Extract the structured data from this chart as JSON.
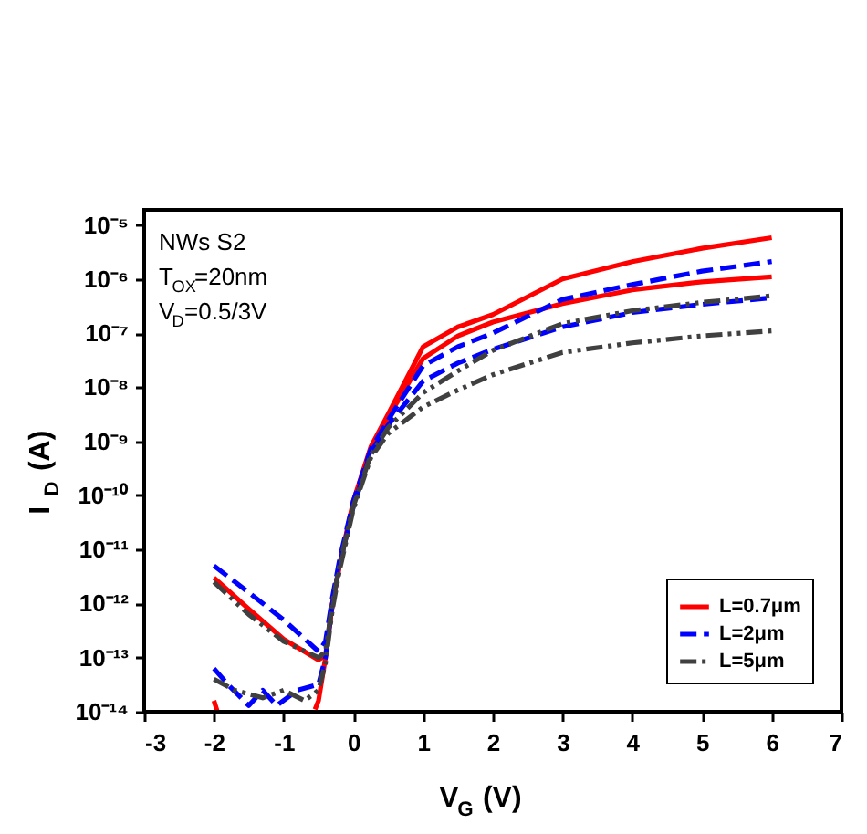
{
  "chart_data": {
    "type": "line",
    "xlabel": "V$_{G}$ (V)",
    "ylabel": "I$_{D}$ (A)",
    "annotations": [
      "NWs S2",
      "T$_{OX}$=20nm",
      "V$_{D}$=0.5/3V"
    ],
    "xlim": [
      -3,
      7
    ],
    "xticks": [
      -3,
      -2,
      -1,
      0,
      1,
      2,
      3,
      4,
      5,
      6,
      7
    ],
    "ylim": [
      1e-14,
      1.9e-05
    ],
    "log": "y",
    "yticks": [
      {
        "value": 1e-14,
        "label": "10⁻¹⁴"
      },
      {
        "value": 1e-13,
        "label": "10⁻¹³"
      },
      {
        "value": 1e-12,
        "label": "10⁻¹²"
      },
      {
        "value": 1e-11,
        "label": "10⁻¹¹"
      },
      {
        "value": 1e-10,
        "label": "10⁻¹⁰"
      },
      {
        "value": 1e-09,
        "label": "10⁻⁹"
      },
      {
        "value": 1e-08,
        "label": "10⁻⁸"
      },
      {
        "value": 1e-07,
        "label": "10⁻⁷"
      },
      {
        "value": 1e-06,
        "label": "10⁻⁶"
      },
      {
        "value": 1e-05,
        "label": "10⁻⁵"
      }
    ],
    "grid": false,
    "legend": "bottom right",
    "marker": "none",
    "series": [
      {
        "name": "L=0.7μm",
        "color": "#ff0000",
        "line_style": "solid",
        "x": [
          -2,
          -1.5,
          -1,
          -0.5,
          -0.4,
          -0.3,
          -0.2,
          0,
          0.25,
          0.5,
          1,
          1.5,
          2,
          3,
          4,
          5,
          6
        ],
        "values": [
          3e-12,
          7.9e-13,
          2.2e-13,
          9.1e-14,
          1.1e-13,
          1e-12,
          5e-12,
          7.9e-11,
          7.9e-10,
          3.2e-09,
          5.6e-08,
          1.3e-07,
          2.2e-07,
          1e-06,
          2.1e-06,
          3.7e-06,
          5.8e-06
        ]
      },
      {
        "color": "#ff0000",
        "line_style": "solid",
        "x": [
          -2,
          -1.95,
          -1.5,
          -0.55,
          -0.5,
          -0.4,
          -0.3,
          -0.2,
          0,
          0.25,
          0.5,
          1,
          1.5,
          2,
          3,
          4,
          5,
          6
        ],
        "values": [
          1.6e-14,
          1e-14,
          null,
          1.1e-14,
          1.6e-14,
          1e-13,
          1e-12,
          5e-12,
          7.1e-11,
          7.1e-10,
          2.8e-09,
          3.4e-08,
          8.9e-08,
          1.6e-07,
          3.5e-07,
          6.3e-07,
          8.9e-07,
          1.1e-06
        ]
      },
      {
        "name": "L=2μm",
        "color": "#0000ff",
        "line_style": "dashed",
        "x": [
          -2,
          -1.5,
          -1,
          -0.5,
          -0.4,
          -0.3,
          -0.2,
          0,
          0.25,
          0.5,
          1,
          1.5,
          2,
          3,
          4,
          5,
          6
        ],
        "values": [
          5e-12,
          1.6e-12,
          5e-13,
          1.3e-13,
          2e-13,
          1.3e-12,
          6.3e-12,
          7.9e-11,
          7.1e-10,
          2.5e-09,
          2.5e-08,
          5.6e-08,
          1e-07,
          4.2e-07,
          7.9e-07,
          1.4e-06,
          2.1e-06
        ]
      },
      {
        "color": "#0000ff",
        "line_style": "dashed",
        "x": [
          -2,
          -1.8,
          -1.5,
          -1.3,
          -1.1,
          -0.8,
          -0.5,
          -0.4,
          -0.3,
          -0.2,
          0,
          0.25,
          0.5,
          1,
          1.5,
          2,
          3,
          4,
          5,
          6
        ],
        "values": [
          6.3e-14,
          3.2e-14,
          1.3e-14,
          2.5e-14,
          1.3e-14,
          2.5e-14,
          3.2e-14,
          1e-13,
          1e-12,
          5e-12,
          6.3e-11,
          6.3e-10,
          2e-09,
          1.3e-08,
          2.8e-08,
          5e-08,
          1.3e-07,
          2.4e-07,
          3.4e-07,
          4.5e-07
        ]
      },
      {
        "name": "L=5μm",
        "color": "#404040",
        "line_style": "dashdot",
        "x": [
          -2,
          -1.5,
          -1,
          -0.5,
          -0.4,
          -0.3,
          -0.2,
          0,
          0.25,
          0.5,
          1,
          1.5,
          2,
          3,
          4,
          5,
          6
        ],
        "values": [
          2.5e-12,
          6.3e-13,
          2e-13,
          1e-13,
          1.3e-13,
          1e-12,
          5e-12,
          6.3e-11,
          5.6e-10,
          1.8e-09,
          7.9e-09,
          2e-08,
          4.8e-08,
          1.5e-07,
          2.6e-07,
          3.7e-07,
          4.9e-07
        ]
      },
      {
        "color": "#404040",
        "line_style": "dashdot",
        "x": [
          -2,
          -1.7,
          -1.3,
          -1,
          -0.7,
          -0.5,
          -0.4,
          -0.3,
          -0.2,
          0,
          0.25,
          0.5,
          1,
          1.5,
          2,
          3,
          4,
          5,
          6
        ],
        "values": [
          4e-14,
          2.5e-14,
          1.8e-14,
          2.5e-14,
          1.6e-14,
          2.5e-14,
          7.9e-14,
          7.9e-13,
          4e-12,
          5.6e-11,
          5e-10,
          1.4e-09,
          4.3e-09,
          8.9e-09,
          1.7e-08,
          4.4e-08,
          6.6e-08,
          8.9e-08,
          1.1e-07
        ]
      }
    ]
  }
}
